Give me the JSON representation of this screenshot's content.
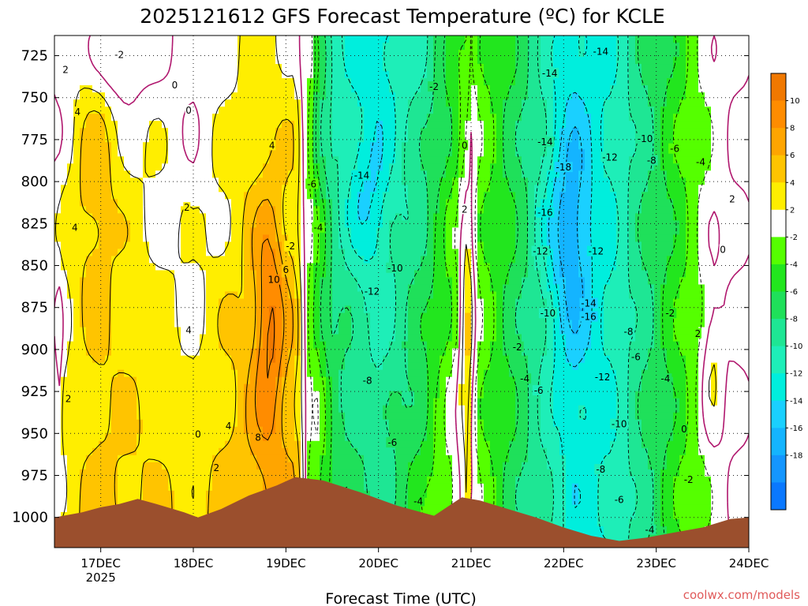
{
  "chart_data": {
    "type": "heatmap",
    "title": "2025121612 GFS Forecast Temperature (ºC) for KCLE",
    "xlabel": "Forecast Time (UTC)",
    "ylabel": "",
    "credit": "coolwx.com/models",
    "x_ticks": [
      {
        "label": "17DEC",
        "sub": "2025",
        "day": 17
      },
      {
        "label": "18DEC",
        "sub": "",
        "day": 18
      },
      {
        "label": "19DEC",
        "sub": "",
        "day": 19
      },
      {
        "label": "20DEC",
        "sub": "",
        "day": 20
      },
      {
        "label": "21DEC",
        "sub": "",
        "day": 21
      },
      {
        "label": "22DEC",
        "sub": "",
        "day": 22
      },
      {
        "label": "23DEC",
        "sub": "",
        "day": 23
      },
      {
        "label": "24DEC",
        "sub": "",
        "day": 24
      }
    ],
    "xlim": [
      16.5,
      24.0
    ],
    "y_ticks": [
      725,
      750,
      775,
      800,
      825,
      850,
      875,
      900,
      925,
      950,
      975,
      1000
    ],
    "ylim": [
      713,
      1018
    ],
    "ground_color": "#9b4f2d",
    "colorbar": {
      "bins": [
        {
          "lo": 10,
          "hi": 12,
          "color": "#f07800"
        },
        {
          "lo": 8,
          "hi": 10,
          "color": "#ff8c00"
        },
        {
          "lo": 6,
          "hi": 8,
          "color": "#ffa500"
        },
        {
          "lo": 4,
          "hi": 6,
          "color": "#ffc400"
        },
        {
          "lo": 2,
          "hi": 4,
          "color": "#ffee00"
        },
        {
          "lo": -2,
          "hi": 2,
          "color": "#ffffff"
        },
        {
          "lo": -4,
          "hi": -2,
          "color": "#55ff00"
        },
        {
          "lo": -6,
          "hi": -4,
          "color": "#22e61e"
        },
        {
          "lo": -8,
          "hi": -6,
          "color": "#1fe05a"
        },
        {
          "lo": -10,
          "hi": -8,
          "color": "#1ee694"
        },
        {
          "lo": -12,
          "hi": -10,
          "color": "#1eeeb8"
        },
        {
          "lo": -14,
          "hi": -12,
          "color": "#00eedd"
        },
        {
          "lo": -16,
          "hi": -14,
          "color": "#1ad0ff"
        },
        {
          "lo": -18,
          "hi": -16,
          "color": "#14b4ff"
        },
        {
          "lo": -20,
          "hi": -18,
          "color": "#1496ff"
        },
        {
          "lo": -22,
          "hi": -20,
          "color": "#0a78ff"
        }
      ],
      "tick_labels": [
        "10",
        "8",
        "6",
        "4",
        "2",
        "-2",
        "-4",
        "-6",
        "-8",
        "-10",
        "-12",
        "-14",
        "-16",
        "-18"
      ]
    },
    "contour_labels": [
      {
        "text": "-2",
        "day": 17.2,
        "p": 725
      },
      {
        "text": "2",
        "day": 16.62,
        "p": 734
      },
      {
        "text": "0",
        "day": 17.8,
        "p": 743
      },
      {
        "text": "4",
        "day": 16.75,
        "p": 759
      },
      {
        "text": "0",
        "day": 17.95,
        "p": 758
      },
      {
        "text": "2",
        "day": 17.93,
        "p": 816
      },
      {
        "text": "4",
        "day": 16.72,
        "p": 828
      },
      {
        "text": "4",
        "day": 18.85,
        "p": 779
      },
      {
        "text": "-6",
        "day": 19.28,
        "p": 802
      },
      {
        "text": "-14",
        "day": 19.82,
        "p": 797
      },
      {
        "text": "-2",
        "day": 20.6,
        "p": 744
      },
      {
        "text": "-4",
        "day": 19.35,
        "p": 828
      },
      {
        "text": "-2",
        "day": 19.05,
        "p": 839
      },
      {
        "text": "6",
        "day": 19.0,
        "p": 853
      },
      {
        "text": "10",
        "day": 18.87,
        "p": 859
      },
      {
        "text": "-10",
        "day": 20.18,
        "p": 852
      },
      {
        "text": "-12",
        "day": 19.93,
        "p": 866
      },
      {
        "text": "0",
        "day": 20.93,
        "p": 779
      },
      {
        "text": "2",
        "day": 20.93,
        "p": 817
      },
      {
        "text": "4",
        "day": 17.95,
        "p": 889
      },
      {
        "text": "2",
        "day": 16.65,
        "p": 930
      },
      {
        "text": "0",
        "day": 18.05,
        "p": 951
      },
      {
        "text": "2",
        "day": 18.25,
        "p": 971
      },
      {
        "text": "4",
        "day": 18.38,
        "p": 946
      },
      {
        "text": "8",
        "day": 18.7,
        "p": 953
      },
      {
        "text": "-8",
        "day": 19.88,
        "p": 919
      },
      {
        "text": "-6",
        "day": 20.15,
        "p": 956
      },
      {
        "text": "-4",
        "day": 20.43,
        "p": 991
      },
      {
        "text": "-2",
        "day": 21.5,
        "p": 899
      },
      {
        "text": "-4",
        "day": 21.58,
        "p": 918
      },
      {
        "text": "-6",
        "day": 21.73,
        "p": 925
      },
      {
        "text": "-14",
        "day": 21.85,
        "p": 736
      },
      {
        "text": "-14",
        "day": 22.4,
        "p": 723
      },
      {
        "text": "-14",
        "day": 21.8,
        "p": 777
      },
      {
        "text": "-18",
        "day": 22.0,
        "p": 792
      },
      {
        "text": "-16",
        "day": 21.8,
        "p": 819
      },
      {
        "text": "-12",
        "day": 21.75,
        "p": 842
      },
      {
        "text": "-12",
        "day": 22.35,
        "p": 842
      },
      {
        "text": "-10",
        "day": 21.83,
        "p": 879
      },
      {
        "text": "-14",
        "day": 22.27,
        "p": 873
      },
      {
        "text": "-16",
        "day": 22.27,
        "p": 881
      },
      {
        "text": "-8",
        "day": 22.7,
        "p": 890
      },
      {
        "text": "-6",
        "day": 22.78,
        "p": 905
      },
      {
        "text": "-4",
        "day": 23.1,
        "p": 918
      },
      {
        "text": "-12",
        "day": 22.42,
        "p": 917
      },
      {
        "text": "-10",
        "day": 22.6,
        "p": 945
      },
      {
        "text": "-8",
        "day": 22.4,
        "p": 972
      },
      {
        "text": "-6",
        "day": 22.6,
        "p": 990
      },
      {
        "text": "-4",
        "day": 22.93,
        "p": 1008
      },
      {
        "text": "-12",
        "day": 22.5,
        "p": 786
      },
      {
        "text": "-10",
        "day": 22.88,
        "p": 775
      },
      {
        "text": "-8",
        "day": 22.95,
        "p": 788
      },
      {
        "text": "-6",
        "day": 23.2,
        "p": 781
      },
      {
        "text": "-4",
        "day": 23.48,
        "p": 789
      },
      {
        "text": "-2",
        "day": 23.15,
        "p": 879
      },
      {
        "text": "2",
        "day": 23.82,
        "p": 811
      },
      {
        "text": "0",
        "day": 23.72,
        "p": 841
      },
      {
        "text": "2",
        "day": 23.45,
        "p": 891
      },
      {
        "text": "0",
        "day": 23.3,
        "p": 948
      },
      {
        "text": "-2",
        "day": 23.35,
        "p": 978
      }
    ]
  }
}
